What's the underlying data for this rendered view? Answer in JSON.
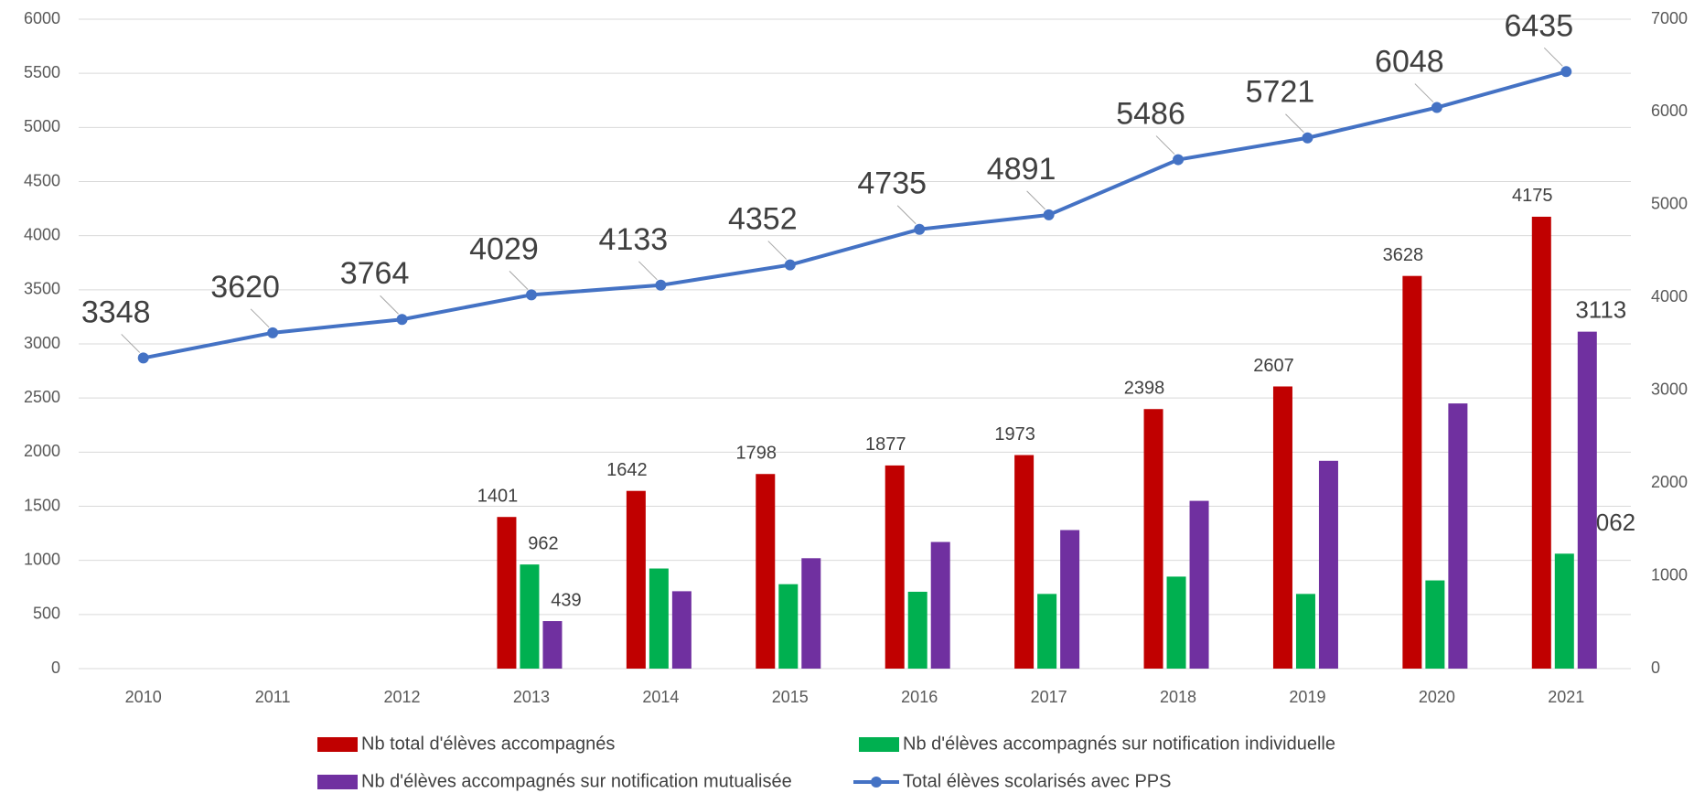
{
  "chart_data": {
    "type": "bar",
    "categories": [
      "2010",
      "2011",
      "2012",
      "2013",
      "2014",
      "2015",
      "2016",
      "2017",
      "2018",
      "2019",
      "2020",
      "2021"
    ],
    "series": [
      {
        "name": "Nb total d'élèves accompagnés",
        "color": "#c00000",
        "type": "bar",
        "values": [
          null,
          null,
          null,
          1401,
          1642,
          1798,
          1877,
          1973,
          2398,
          2607,
          3628,
          4175
        ],
        "value_labels": [
          null,
          null,
          null,
          "1401",
          "1642",
          "1798",
          "1877",
          "1973",
          "2398",
          "2607",
          "3628",
          "4175"
        ]
      },
      {
        "name": "Nb d'élèves accompagnés sur notification individuelle",
        "color": "#00b050",
        "type": "bar",
        "values": [
          null,
          null,
          null,
          962,
          925,
          780,
          710,
          690,
          850,
          690,
          815,
          1062
        ],
        "value_labels": [
          null,
          null,
          null,
          "962",
          null,
          null,
          null,
          null,
          null,
          null,
          null,
          "1062"
        ]
      },
      {
        "name": "Nb d'élèves accompagnés sur notification mutualisée",
        "color": "#7030a0",
        "type": "bar",
        "values": [
          null,
          null,
          null,
          439,
          715,
          1020,
          1170,
          1280,
          1550,
          1920,
          2450,
          3113
        ],
        "value_labels": [
          null,
          null,
          null,
          "439",
          null,
          null,
          null,
          null,
          null,
          null,
          null,
          "3113"
        ]
      },
      {
        "name": "Total élèves scolarisés avec PPS",
        "color": "#4472c4",
        "type": "line",
        "axis": "y2",
        "values": [
          3348,
          3620,
          3764,
          4029,
          4133,
          4352,
          4735,
          4891,
          5486,
          5721,
          6048,
          6435
        ],
        "value_labels": [
          "3348",
          "3620",
          "3764",
          "4029",
          "4133",
          "4352",
          "4735",
          "4891",
          "5486",
          "5721",
          "6048",
          "6435"
        ]
      }
    ],
    "ylim": [
      0,
      6000
    ],
    "yticks": [
      0,
      500,
      1000,
      1500,
      2000,
      2500,
      3000,
      3500,
      4000,
      4500,
      5000,
      5500,
      6000
    ],
    "y2lim": [
      0,
      7000
    ],
    "y2ticks": [
      0,
      1000,
      2000,
      3000,
      4000,
      5000,
      6000,
      7000
    ],
    "grid": true,
    "legend": "bottom"
  }
}
